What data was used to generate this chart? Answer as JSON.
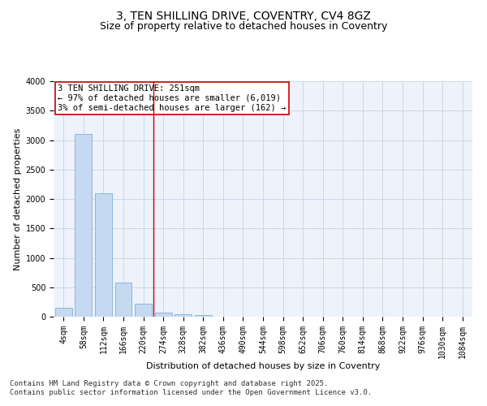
{
  "title_line1": "3, TEN SHILLING DRIVE, COVENTRY, CV4 8GZ",
  "title_line2": "Size of property relative to detached houses in Coventry",
  "xlabel": "Distribution of detached houses by size in Coventry",
  "ylabel": "Number of detached properties",
  "bar_color": "#c5d9f1",
  "bar_edge_color": "#7fb0d9",
  "grid_color": "#c8d4e8",
  "background_color": "#eef2fa",
  "categories": [
    "4sqm",
    "58sqm",
    "112sqm",
    "166sqm",
    "220sqm",
    "274sqm",
    "328sqm",
    "382sqm",
    "436sqm",
    "490sqm",
    "544sqm",
    "598sqm",
    "652sqm",
    "706sqm",
    "760sqm",
    "814sqm",
    "868sqm",
    "922sqm",
    "976sqm",
    "1030sqm",
    "1084sqm"
  ],
  "values": [
    148,
    3100,
    2090,
    580,
    220,
    75,
    45,
    25,
    0,
    0,
    0,
    0,
    0,
    0,
    0,
    0,
    0,
    0,
    0,
    0,
    0
  ],
  "ylim": [
    0,
    4000
  ],
  "yticks": [
    0,
    500,
    1000,
    1500,
    2000,
    2500,
    3000,
    3500,
    4000
  ],
  "vline_x": 4.5,
  "vline_color": "#cc0000",
  "annotation_box_text": "3 TEN SHILLING DRIVE: 251sqm\n← 97% of detached houses are smaller (6,019)\n3% of semi-detached houses are larger (162) →",
  "annotation_box_color": "#cc0000",
  "annotation_box_bg": "#ffffff",
  "footer_text": "Contains HM Land Registry data © Crown copyright and database right 2025.\nContains public sector information licensed under the Open Government Licence v3.0.",
  "title_fontsize": 10,
  "subtitle_fontsize": 9,
  "axis_label_fontsize": 8,
  "tick_fontsize": 7,
  "annotation_fontsize": 7.5,
  "footer_fontsize": 6.5
}
